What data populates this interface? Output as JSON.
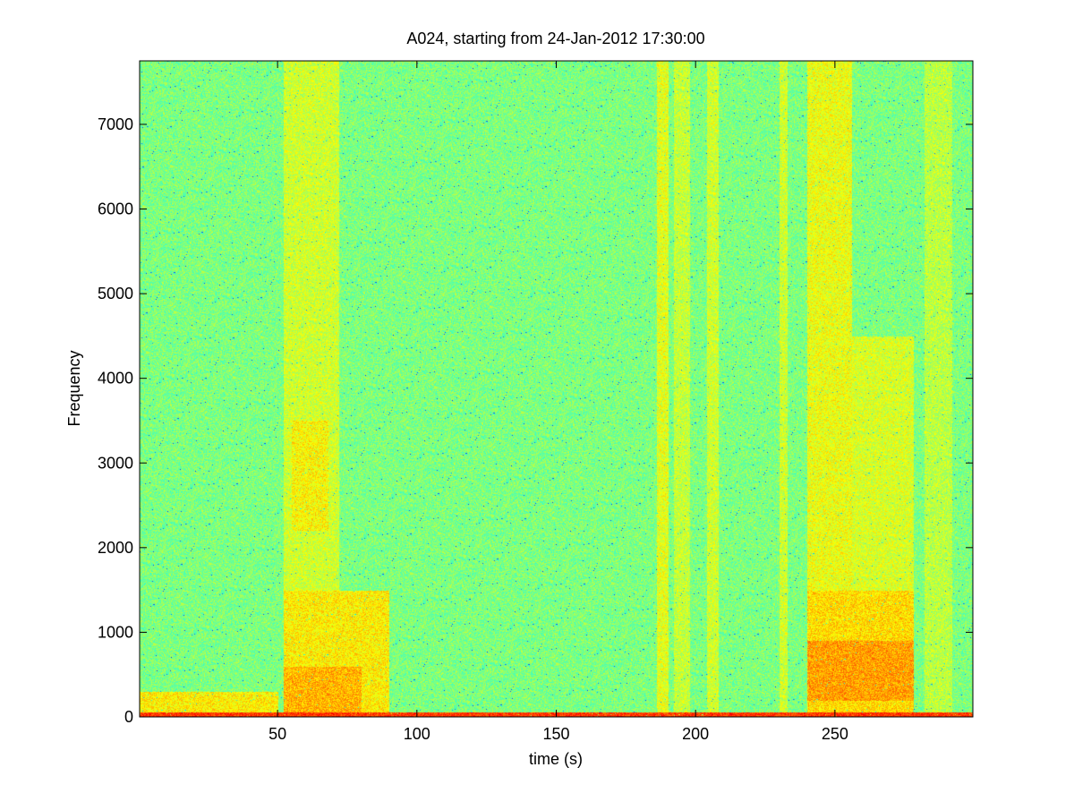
{
  "figure": {
    "title": "A024, starting from 24-Jan-2012 17:30:00"
  },
  "chart_data": {
    "type": "heatmap",
    "title": "A024, starting from 24-Jan-2012 17:30:00",
    "xlabel": "time (s)",
    "ylabel": "Frequency",
    "xlim": [
      0.5,
      299.5
    ],
    "ylim": [
      0,
      7750
    ],
    "x_ticks": [
      {
        "value": 50,
        "label": "50"
      },
      {
        "value": 100,
        "label": "100"
      },
      {
        "value": 150,
        "label": "150"
      },
      {
        "value": 200,
        "label": "200"
      },
      {
        "value": 250,
        "label": "250"
      }
    ],
    "y_ticks": [
      {
        "value": 0,
        "label": "0"
      },
      {
        "value": 1000,
        "label": "1000"
      },
      {
        "value": 2000,
        "label": "2000"
      },
      {
        "value": 3000,
        "label": "3000"
      },
      {
        "value": 4000,
        "label": "4000"
      },
      {
        "value": 5000,
        "label": "5000"
      },
      {
        "value": 6000,
        "label": "6000"
      },
      {
        "value": 7000,
        "label": "7000"
      }
    ],
    "colormap": [
      "#00007f",
      "#0000ff",
      "#007fff",
      "#00ffff",
      "#7fff7f",
      "#ffff00",
      "#ff7f00",
      "#ff0000",
      "#7f0000"
    ],
    "background_level": 0.5,
    "regions": [
      {
        "t0": 52,
        "t1": 72,
        "f0": 0,
        "f1": 7750,
        "level": 0.58
      },
      {
        "t0": 55,
        "t1": 68,
        "f0": 2200,
        "f1": 3500,
        "level": 0.63
      },
      {
        "t0": 52,
        "t1": 90,
        "f0": 0,
        "f1": 1500,
        "level": 0.64
      },
      {
        "t0": 52,
        "t1": 80,
        "f0": 0,
        "f1": 600,
        "level": 0.7
      },
      {
        "t0": 0.5,
        "t1": 50,
        "f0": 0,
        "f1": 300,
        "level": 0.64
      },
      {
        "t0": 186,
        "t1": 190,
        "f0": 0,
        "f1": 7750,
        "level": 0.6
      },
      {
        "t0": 192,
        "t1": 198,
        "f0": 0,
        "f1": 7750,
        "level": 0.57
      },
      {
        "t0": 204,
        "t1": 208,
        "f0": 0,
        "f1": 7750,
        "level": 0.58
      },
      {
        "t0": 230,
        "t1": 233,
        "f0": 0,
        "f1": 7750,
        "level": 0.58
      },
      {
        "t0": 240,
        "t1": 256,
        "f0": 0,
        "f1": 7750,
        "level": 0.61
      },
      {
        "t0": 256,
        "t1": 278,
        "f0": 0,
        "f1": 4500,
        "level": 0.59
      },
      {
        "t0": 240,
        "t1": 278,
        "f0": 0,
        "f1": 1500,
        "level": 0.66
      },
      {
        "t0": 240,
        "t1": 278,
        "f0": 200,
        "f1": 900,
        "level": 0.72
      },
      {
        "t0": 282,
        "t1": 292,
        "f0": 0,
        "f1": 7750,
        "level": 0.56
      },
      {
        "t0": 0.5,
        "t1": 299.5,
        "f0": 0,
        "f1": 60,
        "level": 0.82
      }
    ]
  }
}
